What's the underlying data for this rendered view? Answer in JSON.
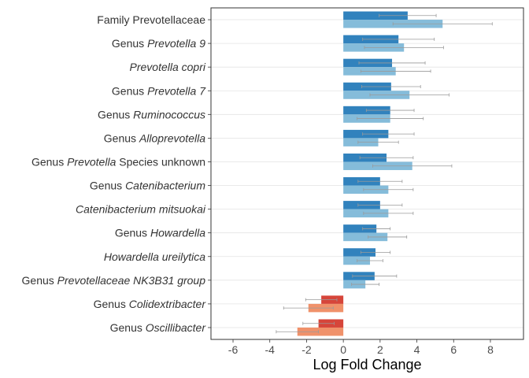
{
  "chart_data": {
    "type": "bar",
    "orientation": "horizontal",
    "xlabel": "Log Fold Change",
    "xlim": [
      -7.2,
      9.8
    ],
    "xticks": [
      -6,
      -4,
      -2,
      0,
      2,
      4,
      6,
      8
    ],
    "grid": true,
    "categories": [
      [
        {
          "t": "Family Prevotellaceae",
          "i": false
        }
      ],
      [
        {
          "t": "Genus ",
          "i": false
        },
        {
          "t": "Prevotella 9",
          "i": true
        }
      ],
      [
        {
          "t": "Prevotella copri",
          "i": true
        }
      ],
      [
        {
          "t": "Genus ",
          "i": false
        },
        {
          "t": "Prevotella 7",
          "i": true
        }
      ],
      [
        {
          "t": "Genus ",
          "i": false
        },
        {
          "t": "Ruminococcus",
          "i": true
        }
      ],
      [
        {
          "t": "Genus ",
          "i": false
        },
        {
          "t": "Alloprevotella",
          "i": true
        }
      ],
      [
        {
          "t": "Genus ",
          "i": false
        },
        {
          "t": "Prevotella",
          "i": true
        },
        {
          "t": " Species unknown",
          "i": false
        }
      ],
      [
        {
          "t": "Genus ",
          "i": false
        },
        {
          "t": "Catenibacterium",
          "i": true
        }
      ],
      [
        {
          "t": "Catenibacterium mitsuokai",
          "i": true
        }
      ],
      [
        {
          "t": "Genus ",
          "i": false
        },
        {
          "t": "Howardella",
          "i": true
        }
      ],
      [
        {
          "t": "Howardella ureilytica",
          "i": true
        }
      ],
      [
        {
          "t": "Genus ",
          "i": false
        },
        {
          "t": "Prevotellaceae NK3B31 group",
          "i": true
        }
      ],
      [
        {
          "t": "Genus ",
          "i": false
        },
        {
          "t": "Colidextribacter",
          "i": true
        }
      ],
      [
        {
          "t": "Genus ",
          "i": false
        },
        {
          "t": "Oscillibacter",
          "i": true
        }
      ]
    ],
    "series": [
      {
        "values": [
          3.5,
          3.0,
          2.65,
          2.6,
          2.55,
          2.45,
          2.35,
          2.0,
          2.0,
          1.8,
          1.75,
          1.7,
          -1.2,
          -1.35
        ],
        "error": [
          1.55,
          1.95,
          1.8,
          1.6,
          1.3,
          1.4,
          1.45,
          1.2,
          1.2,
          0.75,
          0.8,
          1.2,
          0.85,
          0.85
        ],
        "color_positive": "#3182bd",
        "color_negative": "#d6453a"
      },
      {
        "values": [
          5.4,
          3.3,
          2.85,
          3.6,
          2.55,
          1.9,
          3.75,
          2.45,
          2.45,
          2.4,
          1.45,
          1.2,
          -1.9,
          -2.5
        ],
        "error": [
          2.7,
          2.15,
          1.9,
          2.15,
          1.8,
          1.1,
          2.15,
          1.35,
          1.35,
          1.05,
          0.7,
          0.75,
          1.35,
          1.15
        ],
        "color_positive": "#85bcda",
        "color_negative": "#f0916a"
      }
    ]
  }
}
